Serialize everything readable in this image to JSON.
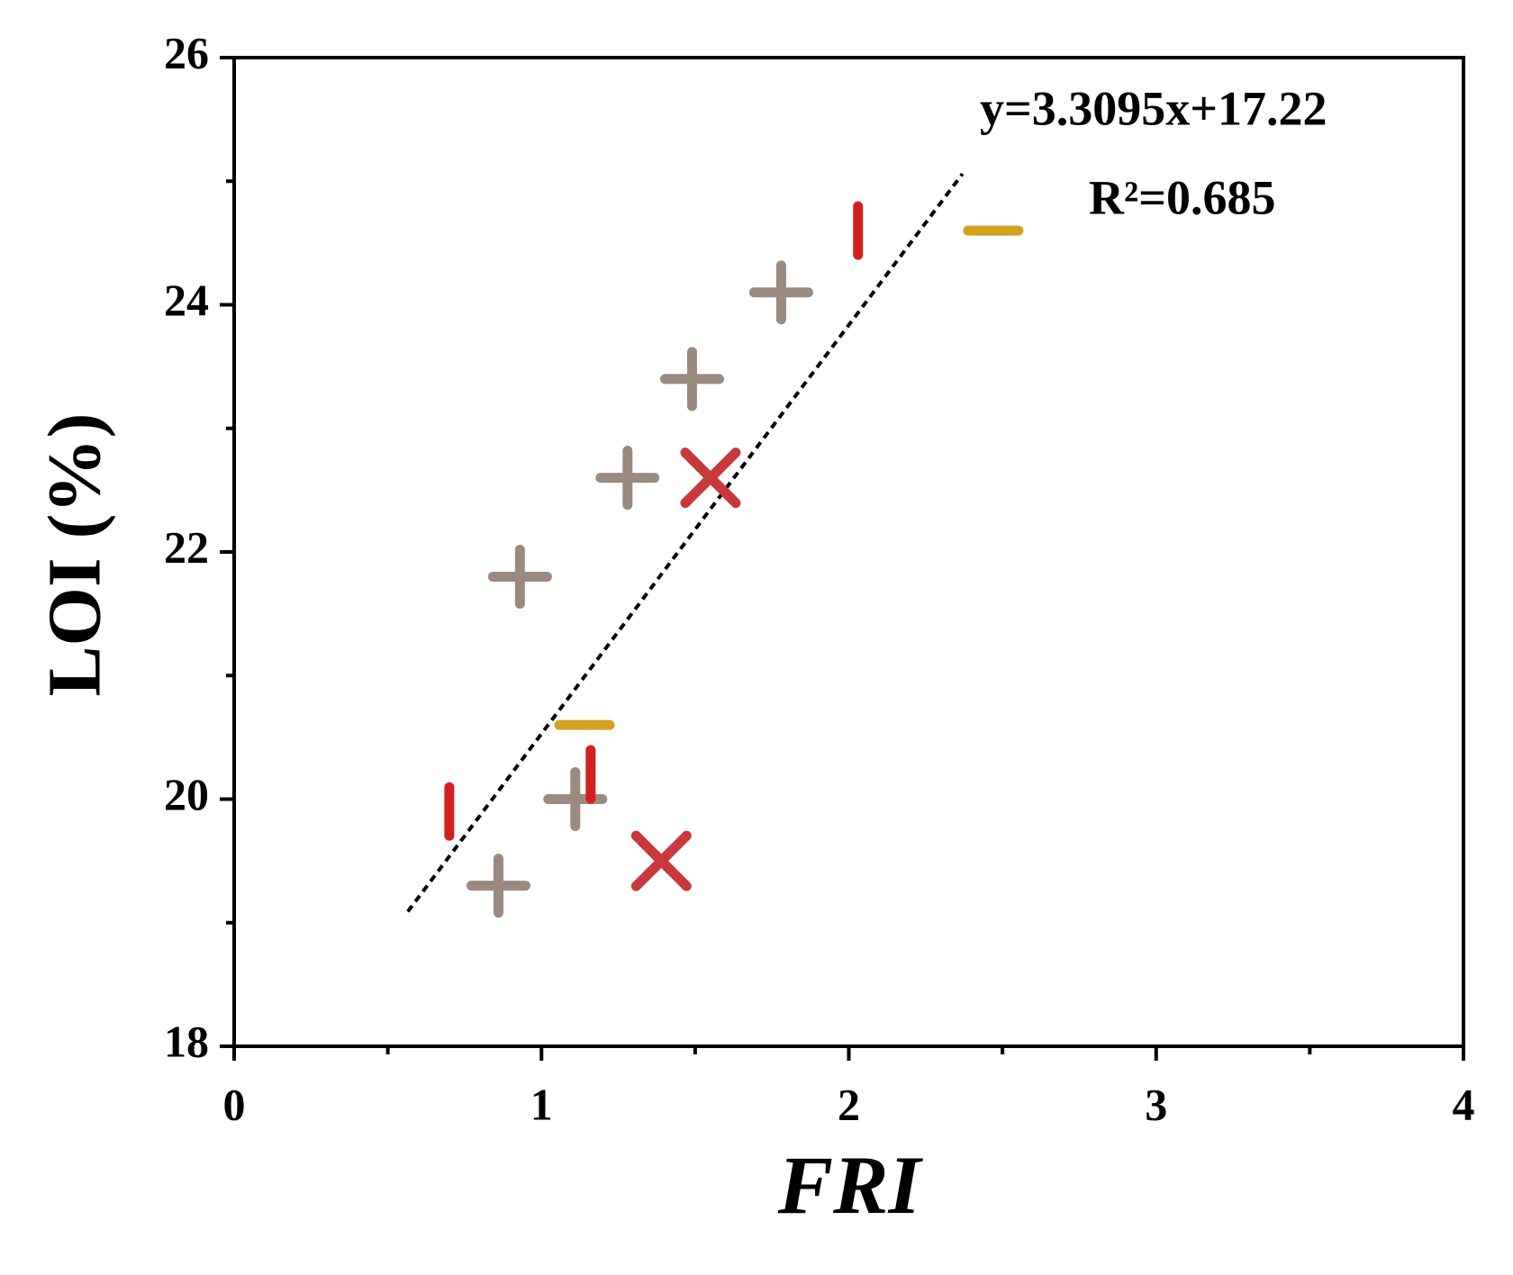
{
  "chart_data": {
    "type": "scatter",
    "xlabel": "FRI",
    "ylabel": "LOI (%)",
    "xlim": [
      0,
      4
    ],
    "ylim": [
      18,
      26
    ],
    "xticks": [
      0,
      1,
      2,
      3,
      4
    ],
    "yticks": [
      18,
      20,
      22,
      24,
      26
    ],
    "xminorticks": [
      0.5,
      1.5,
      2.5,
      3.5
    ],
    "yminorticks": [
      19,
      21,
      23,
      25
    ],
    "series": [
      {
        "marker": "plus",
        "color": "#9a8a80",
        "x": [
          0.86,
          0.93,
          1.11,
          1.28,
          1.49,
          1.78
        ],
        "values": [
          19.3,
          21.8,
          20.0,
          22.6,
          23.4,
          24.1
        ]
      },
      {
        "marker": "vbar",
        "color": "#d42020",
        "x": [
          0.7,
          1.16,
          2.03
        ],
        "values": [
          19.9,
          20.2,
          24.6
        ]
      },
      {
        "marker": "hbar",
        "color": "#d4a020",
        "x": [
          1.14,
          2.47
        ],
        "values": [
          20.6,
          24.6
        ]
      },
      {
        "marker": "cross",
        "color": "#c8393c",
        "x": [
          1.39,
          1.55
        ],
        "values": [
          19.5,
          22.6
        ]
      }
    ],
    "trendline": {
      "x": [
        0.565,
        2.37
      ],
      "values": [
        19.09,
        25.06
      ],
      "color": "#000000",
      "dashed": true
    },
    "annotations": [
      "y=3.3095x+17.22",
      "R²=0.685"
    ]
  }
}
